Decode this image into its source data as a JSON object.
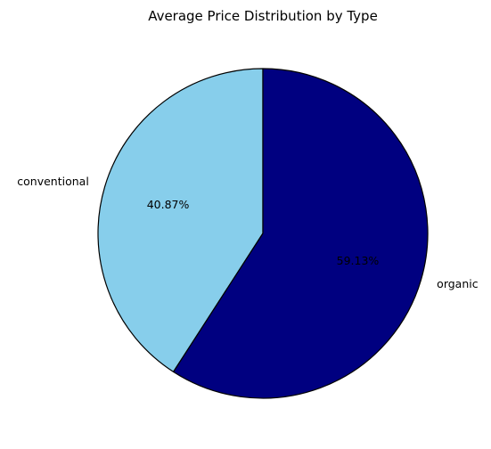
{
  "chart_data": {
    "type": "pie",
    "title": "Average Price Distribution by Type",
    "categories": [
      "conventional",
      "organic"
    ],
    "values": [
      40.87,
      59.13
    ],
    "percent_labels": [
      "40.87%",
      "59.13%"
    ],
    "colors": [
      "#87CEEB",
      "#000080"
    ],
    "edge_color": "#000000",
    "start_angle": "90",
    "direction": "counterclockwise"
  }
}
